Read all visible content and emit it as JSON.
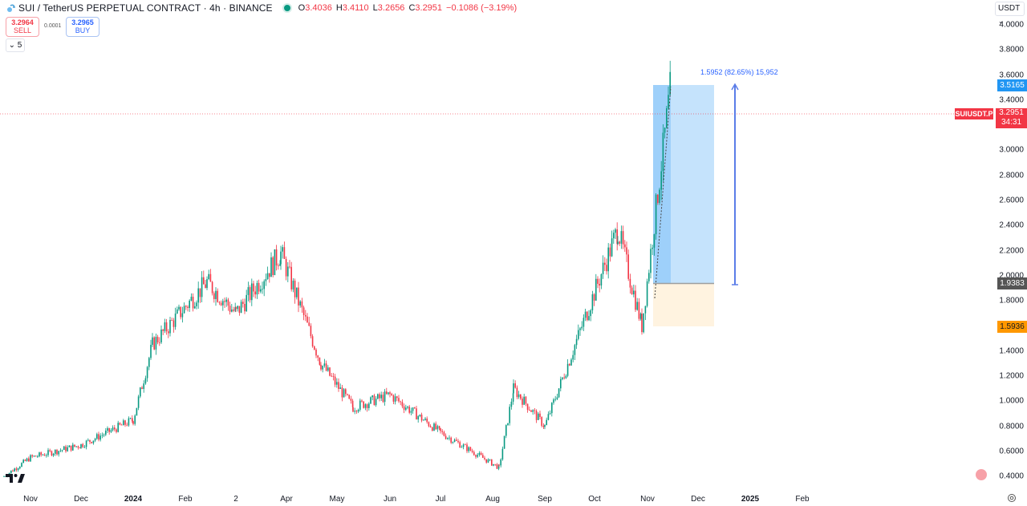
{
  "header": {
    "symbol_title": "SUI / TetherUS PERPETUAL CONTRACT · 4h · BINANCE",
    "ohlc": {
      "open_label": "O",
      "open": "3.4036",
      "high_label": "H",
      "high": "3.4110",
      "low_label": "L",
      "low": "3.2656",
      "close_label": "C",
      "close": "3.2951",
      "change": "−0.1086 (−3.19%)"
    },
    "status_color": "#089981"
  },
  "trade": {
    "sell_price": "3.2964",
    "sell_label": "SELL",
    "spread": "0.0001",
    "buy_price": "3.2965",
    "buy_label": "BUY"
  },
  "indicators_toggle": "5",
  "currency_selector": "USDT",
  "price_axis": {
    "ticks": [
      "4.0000",
      "3.8000",
      "3.6000",
      "3.4000",
      "3.0000",
      "2.8000",
      "2.6000",
      "2.4000",
      "2.2000",
      "2.0000",
      "1.8000",
      "1.4000",
      "1.2000",
      "1.0000",
      "0.8000",
      "0.6000",
      "0.4000"
    ],
    "labels": {
      "target": "3.5165",
      "entry": "1.9383",
      "stop": "1.5936",
      "symbol": "SUIUSDT.P",
      "last": "3.2951",
      "countdown": "34:31"
    }
  },
  "time_axis": [
    "Nov",
    "Dec",
    "2024",
    "Feb",
    "2",
    "Apr",
    "May",
    "Jun",
    "Jul",
    "Aug",
    "Sep",
    "Oct",
    "Nov",
    "Dec",
    "2025",
    "Feb"
  ],
  "measure": {
    "label": "1.5952 (82.65%) 15,952"
  },
  "colors": {
    "up": "#089981",
    "down": "#f23645",
    "target_zone": "#bbdefb",
    "stop_zone": "#fff3e0",
    "accent": "#2962ff",
    "last_price": "#f23645",
    "stop_label": "#ff9800",
    "entry_label": "#555555",
    "target_label": "#2196f3"
  },
  "chart_data": {
    "type": "candlestick",
    "title": "SUI / TetherUS PERPETUAL CONTRACT · 4h · BINANCE",
    "xlabel": "",
    "ylabel": "USDT",
    "ylim": [
      0.4,
      4.0
    ],
    "categories": [
      "Nov 2023",
      "Dec 2023",
      "Jan 2024",
      "Feb 2024",
      "Mar 2024",
      "Apr 2024",
      "May 2024",
      "Jun 2024",
      "Jul 2024",
      "Aug 2024",
      "Sep 2024",
      "Oct 2024",
      "Nov 2024"
    ],
    "series": [
      {
        "name": "SUIUSDT.P approx close",
        "values": [
          0.42,
          0.62,
          0.85,
          1.55,
          1.75,
          1.95,
          1.1,
          1.0,
          0.8,
          0.6,
          0.85,
          1.8,
          3.3
        ]
      }
    ],
    "key_points": [
      {
        "x": "Oct 2023",
        "price": 0.4
      },
      {
        "x": "Nov 2023",
        "price": 0.55
      },
      {
        "x": "Dec 2023",
        "price": 0.65
      },
      {
        "x": "Jan 2024",
        "price": 0.85
      },
      {
        "x": "Jan 2024 late",
        "price": 1.45
      },
      {
        "x": "Feb 2024 mid",
        "price": 1.95
      },
      {
        "x": "Mar 2024 early",
        "price": 1.7
      },
      {
        "x": "Mar 2024 late",
        "price": 2.18
      },
      {
        "x": "Apr 2024",
        "price": 1.3
      },
      {
        "x": "May 2024",
        "price": 0.95
      },
      {
        "x": "Jun 2024",
        "price": 1.05
      },
      {
        "x": "Jul 2024",
        "price": 0.75
      },
      {
        "x": "Aug 2024 low",
        "price": 0.47
      },
      {
        "x": "Aug 2024 mid",
        "price": 1.1
      },
      {
        "x": "Sep 2024",
        "price": 0.8
      },
      {
        "x": "Oct 2024 high",
        "price": 2.37
      },
      {
        "x": "Nov 2024 low",
        "price": 1.6
      },
      {
        "x": "Nov 2024 high",
        "price": 3.52
      },
      {
        "x": "last",
        "price": 3.2951
      }
    ],
    "annotations": {
      "long_position": {
        "entry": 1.9383,
        "target": 3.5165,
        "stop": 1.5936
      },
      "price_range_measure": "1.5952 (82.65%) 15,952",
      "last_price": 3.2951
    },
    "grid": false,
    "legend_position": "none"
  }
}
